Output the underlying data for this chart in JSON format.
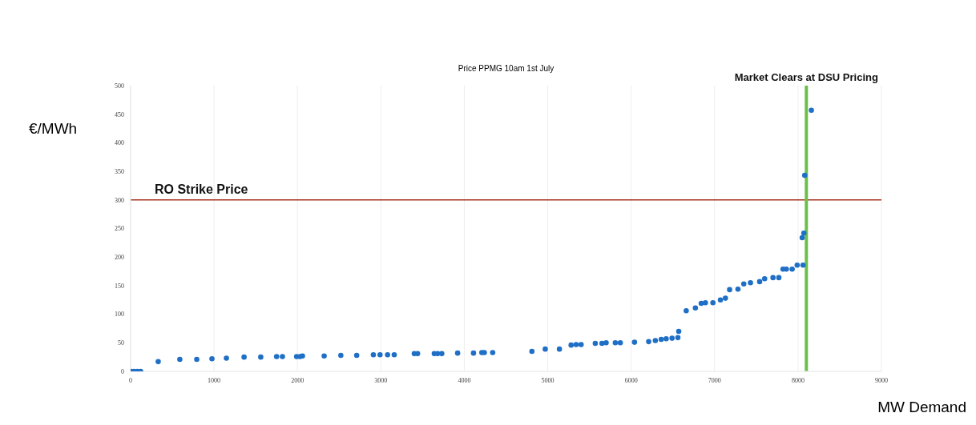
{
  "chart_data": {
    "type": "scatter",
    "title": "Price PPMG 10am 1st July",
    "xlabel": "MW Demand",
    "ylabel": "€/MWh",
    "x": [
      0,
      40,
      80,
      120,
      331,
      590,
      793,
      975,
      1148,
      1360,
      1560,
      1750,
      1820,
      1990,
      2030,
      2060,
      2320,
      2520,
      2710,
      2910,
      2990,
      3080,
      3160,
      3400,
      3440,
      3640,
      3680,
      3730,
      3920,
      4110,
      4210,
      4240,
      4340,
      4810,
      4970,
      5140,
      5280,
      5340,
      5400,
      5570,
      5650,
      5700,
      5810,
      5870,
      6040,
      6210,
      6290,
      6360,
      6420,
      6490,
      6560,
      6570,
      6660,
      6770,
      6840,
      6890,
      6980,
      7070,
      7130,
      7180,
      7280,
      7350,
      7430,
      7540,
      7600,
      7700,
      7770,
      7820,
      7860,
      7930,
      7990,
      8060,
      8050,
      8070,
      8080,
      8160
    ],
    "series": [
      {
        "color": "#1f6fc6",
        "values": [
          0,
          0,
          0,
          0,
          17,
          21,
          21,
          22,
          23,
          25,
          25,
          26,
          26,
          26,
          26,
          27,
          27,
          28,
          28,
          29,
          29,
          29,
          29,
          31,
          31,
          31,
          31,
          31,
          32,
          32,
          33,
          33,
          33,
          35,
          39,
          39,
          46,
          47,
          47,
          49,
          49,
          50,
          50,
          50,
          51,
          52,
          54,
          56,
          57,
          58,
          59,
          70,
          106,
          111,
          119,
          120,
          120,
          125,
          128,
          143,
          144,
          153,
          155,
          157,
          162,
          164,
          164,
          179,
          179,
          179,
          186,
          186,
          234,
          242,
          343,
          457
        ]
      }
    ],
    "xlim": [
      0,
      9000
    ],
    "xticks": [
      0,
      1000,
      2000,
      3000,
      4000,
      5000,
      6000,
      7000,
      8000,
      9000
    ],
    "ylim": [
      0,
      500
    ],
    "yticks": [
      0,
      50,
      100,
      150,
      200,
      250,
      300,
      350,
      400,
      450,
      500
    ],
    "grid": "x",
    "marker": "circle",
    "ref_lines": [
      {
        "axis": "y",
        "value": 300,
        "label": "RO Strike Price",
        "color": "#a8321e"
      },
      {
        "axis": "x",
        "value": 8100,
        "label": "Market Clears at DSU Pricing",
        "color": "#6cc04a"
      }
    ]
  }
}
